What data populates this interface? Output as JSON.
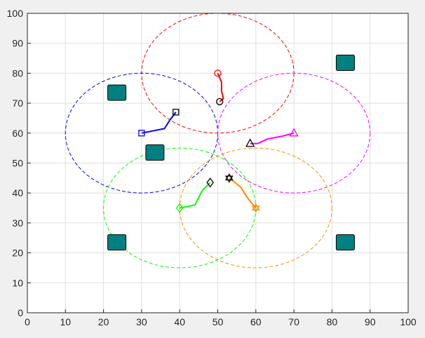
{
  "chart_data": {
    "type": "scatter",
    "title": "",
    "xlabel": "",
    "ylabel": "",
    "xlim": [
      0,
      100
    ],
    "ylim": [
      0,
      100
    ],
    "xticks": [
      0,
      10,
      20,
      30,
      40,
      50,
      60,
      70,
      80,
      90,
      100
    ],
    "yticks": [
      0,
      10,
      20,
      30,
      40,
      50,
      60,
      70,
      80,
      90,
      100
    ],
    "grid": true,
    "legend": "none",
    "series": [
      {
        "color": "#ff0000",
        "marker": "circle",
        "circle_center": [
          50,
          80
        ],
        "circle_radius": 20,
        "path": [
          [
            50,
            80
          ],
          [
            51,
            77
          ],
          [
            51,
            74
          ],
          [
            51.5,
            71.5
          ],
          [
            50.5,
            70.5
          ]
        ],
        "start_marker": "circle",
        "end_marker": "circle"
      },
      {
        "color": "#0000ff",
        "marker": "square",
        "circle_center": [
          30,
          60
        ],
        "circle_radius": 20,
        "path": [
          [
            30,
            60
          ],
          [
            32,
            60.5
          ],
          [
            36,
            61.5
          ],
          [
            37.5,
            64.5
          ],
          [
            39,
            67
          ]
        ],
        "start_marker": "square",
        "end_marker": "square"
      },
      {
        "color": "#ff00ff",
        "marker": "triangle",
        "circle_center": [
          70,
          60
        ],
        "circle_radius": 20,
        "path": [
          [
            70,
            60
          ],
          [
            67,
            59
          ],
          [
            63,
            58
          ],
          [
            60.5,
            56.5
          ],
          [
            58.5,
            56.5
          ]
        ],
        "start_marker": "triangle",
        "end_marker": "triangle"
      },
      {
        "color": "#00ff00",
        "marker": "diamond",
        "circle_center": [
          40,
          35
        ],
        "circle_radius": 20,
        "path": [
          [
            40,
            35
          ],
          [
            44,
            36
          ],
          [
            46,
            41
          ],
          [
            48,
            43.5
          ]
        ],
        "start_marker": "diamond",
        "end_marker": "diamond"
      },
      {
        "color": "#ff8c00",
        "marker": "hexagram",
        "circle_center": [
          60,
          35
        ],
        "circle_radius": 20,
        "path": [
          [
            60,
            35
          ],
          [
            58,
            38
          ],
          [
            56,
            42
          ],
          [
            53,
            45
          ]
        ],
        "start_marker": "hexagram",
        "end_marker": "hexagram"
      }
    ],
    "obstacles": [
      {
        "x": 23.5,
        "y": 73.5
      },
      {
        "x": 33.5,
        "y": 53.5
      },
      {
        "x": 83.5,
        "y": 83.5
      },
      {
        "x": 23.5,
        "y": 23.5
      },
      {
        "x": 83.5,
        "y": 23.5
      }
    ],
    "obstacle_color": "#008080",
    "end_marker_color": "#000000"
  }
}
